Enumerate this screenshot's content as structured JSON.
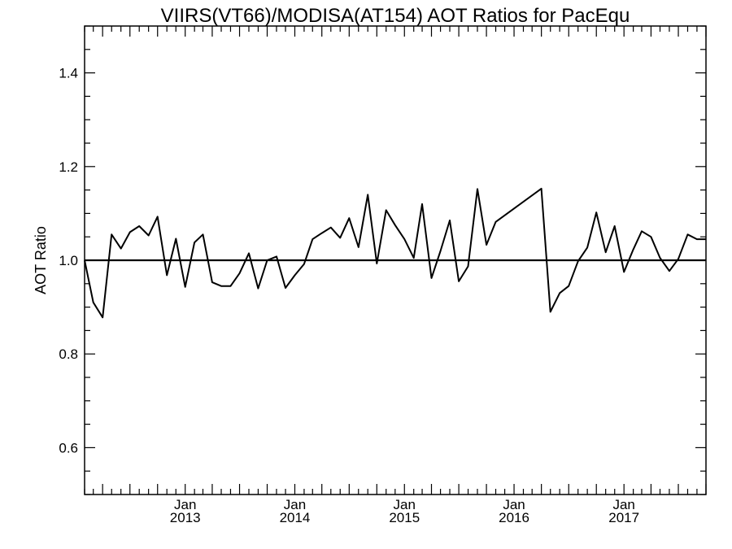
{
  "chart_data": {
    "type": "line",
    "title": "VIIRS(VT66)/MODISA(AT154)  AOT Ratios for PacEqu",
    "xlabel": "",
    "ylabel": "AOT Ratio",
    "ylim": [
      0.5,
      1.5
    ],
    "xlim": [
      "2012-02-01",
      "2017-10-01"
    ],
    "yticks": [
      "0.6",
      "0.8",
      "1.0",
      "1.2",
      "1.4"
    ],
    "xticks": [
      {
        "date": "2013-01-01",
        "month": "Jan",
        "year": "2013"
      },
      {
        "date": "2014-01-01",
        "month": "Jan",
        "year": "2014"
      },
      {
        "date": "2015-01-01",
        "month": "Jan",
        "year": "2015"
      },
      {
        "date": "2016-01-01",
        "month": "Jan",
        "year": "2016"
      },
      {
        "date": "2017-01-01",
        "month": "Jan",
        "year": "2017"
      }
    ],
    "reference_line": 1.0,
    "grid": false,
    "series": [
      {
        "x": [
          "2012-02-01",
          "2012-03-01",
          "2012-04-01",
          "2012-05-01",
          "2012-06-01",
          "2012-07-01",
          "2012-08-01",
          "2012-09-01",
          "2012-10-01",
          "2012-11-01",
          "2012-12-01",
          "2013-01-01",
          "2013-02-01",
          "2013-03-01",
          "2013-04-01",
          "2013-05-01",
          "2013-06-01",
          "2013-07-01",
          "2013-08-01",
          "2013-09-01",
          "2013-10-01",
          "2013-11-01",
          "2013-12-01",
          "2014-01-01",
          "2014-02-01",
          "2014-03-01",
          "2014-04-01",
          "2014-05-01",
          "2014-06-01",
          "2014-07-01",
          "2014-08-01",
          "2014-09-01",
          "2014-10-01",
          "2014-11-01",
          "2014-12-01",
          "2015-01-01",
          "2015-02-01",
          "2015-03-01",
          "2015-04-01",
          "2015-05-01",
          "2015-06-01",
          "2015-07-01",
          "2015-08-01",
          "2015-09-01",
          "2015-10-01",
          "2015-11-01",
          "2016-04-01",
          "2016-05-01",
          "2016-06-01",
          "2016-07-01",
          "2016-08-01",
          "2016-09-01",
          "2016-10-01",
          "2016-11-01",
          "2016-12-01",
          "2017-01-01",
          "2017-02-01",
          "2017-03-01",
          "2017-04-01",
          "2017-05-01",
          "2017-06-01",
          "2017-07-01",
          "2017-08-01",
          "2017-09-01",
          "2017-10-01"
        ],
        "values": [
          1.0,
          0.91,
          0.878,
          1.055,
          1.025,
          1.06,
          1.073,
          1.053,
          1.093,
          0.968,
          1.046,
          0.943,
          1.038,
          1.055,
          0.953,
          0.945,
          0.945,
          0.972,
          1.015,
          0.94,
          1.0,
          1.008,
          0.941,
          0.968,
          0.992,
          1.045,
          1.058,
          1.07,
          1.048,
          1.09,
          1.028,
          1.14,
          0.993,
          1.107,
          1.075,
          1.045,
          1.005,
          1.12,
          0.962,
          1.02,
          1.085,
          0.955,
          0.987,
          1.152,
          1.033,
          1.082,
          1.153,
          0.89,
          0.93,
          0.945,
          0.998,
          1.027,
          1.102,
          1.017,
          1.073,
          0.975,
          1.023,
          1.062,
          1.05,
          1.005,
          0.977,
          1.003,
          1.055,
          1.045,
          1.045
        ]
      }
    ]
  }
}
